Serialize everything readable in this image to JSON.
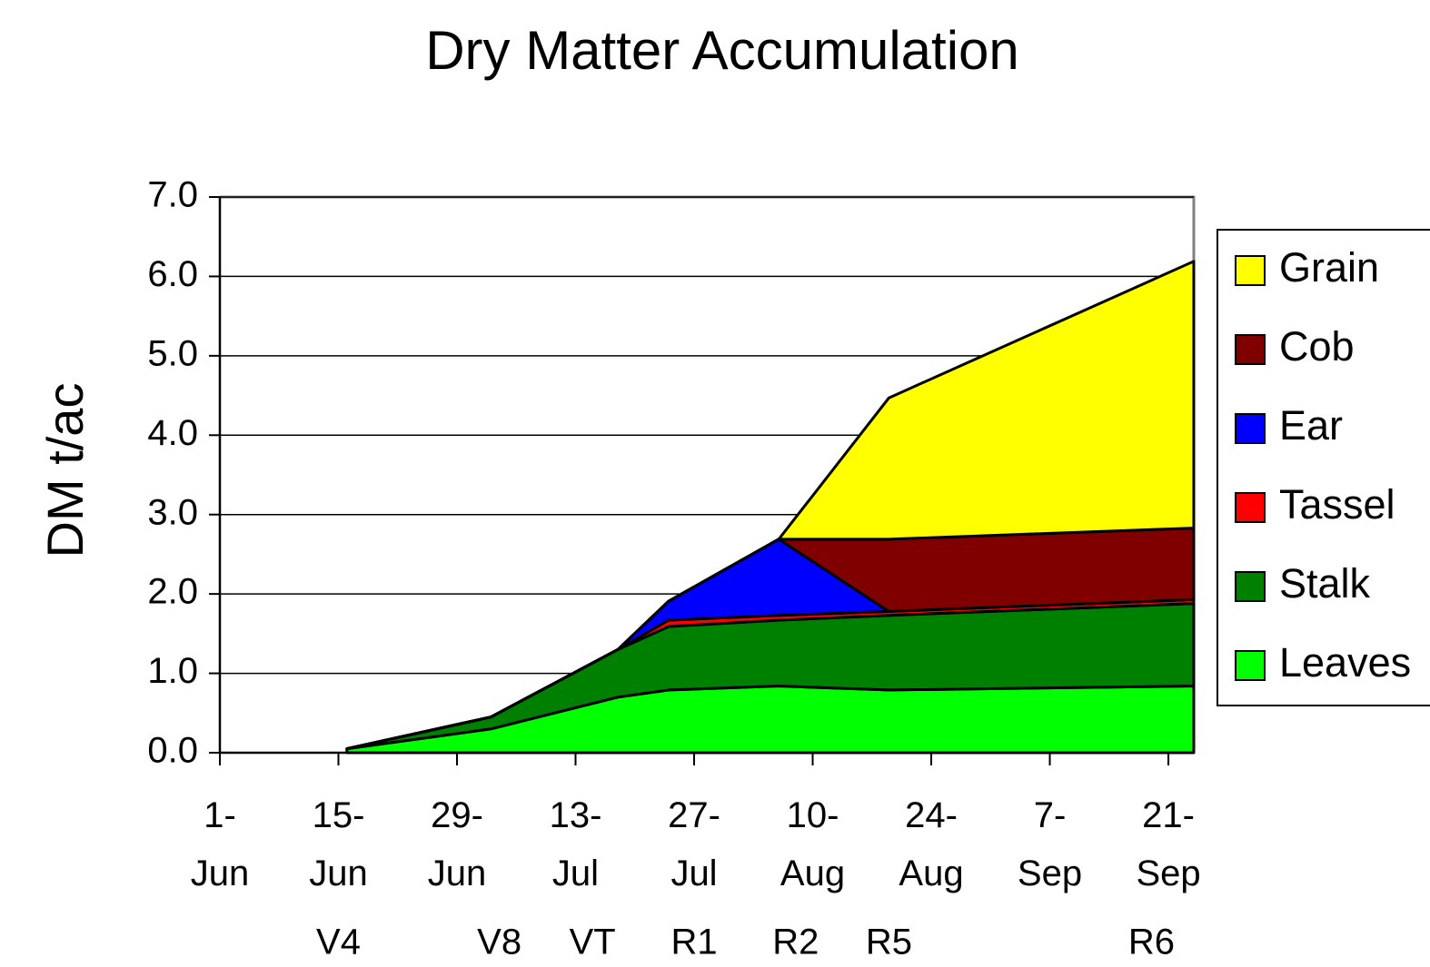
{
  "chart_data": {
    "type": "stacked_area",
    "title": "Dry Matter Accumulation",
    "y_label": "DM t/ac",
    "x": [
      "06-16",
      "07-03",
      "07-18",
      "07-24",
      "08-06",
      "08-19",
      "09-24"
    ],
    "xlim": [
      "06-01",
      "09-24"
    ],
    "xticks": [
      {
        "value": "06-01",
        "label": "1-Jun"
      },
      {
        "value": "06-15",
        "label": "15-Jun"
      },
      {
        "value": "06-29",
        "label": "29-Jun"
      },
      {
        "value": "07-13",
        "label": "13-Jul"
      },
      {
        "value": "07-27",
        "label": "27-Jul"
      },
      {
        "value": "08-10",
        "label": "10-Aug"
      },
      {
        "value": "08-24",
        "label": "24-Aug"
      },
      {
        "value": "09-07",
        "label": "7-Sep"
      },
      {
        "value": "09-21",
        "label": "21-Sep"
      }
    ],
    "ylim": [
      0,
      7
    ],
    "yticks": [
      {
        "value": 0,
        "label": "0.0"
      },
      {
        "value": 1,
        "label": "1.0"
      },
      {
        "value": 2,
        "label": "2.0"
      },
      {
        "value": 3,
        "label": "3.0"
      },
      {
        "value": 4,
        "label": "4.0"
      },
      {
        "value": 5,
        "label": "5.0"
      },
      {
        "value": 6,
        "label": "6.0"
      },
      {
        "value": 7,
        "label": "7.0"
      }
    ],
    "grid": true,
    "legend": "right",
    "series": [
      {
        "name": "Leaves",
        "color": "#00ff00",
        "values": [
          0.05,
          0.3,
          0.7,
          0.79,
          0.84,
          0.79,
          0.84
        ]
      },
      {
        "name": "Stalk",
        "color": "#008000",
        "values": [
          0,
          0.15,
          0.6,
          0.8,
          0.83,
          0.94,
          1.04
        ]
      },
      {
        "name": "Tassel",
        "color": "#ff0000",
        "values": [
          0,
          0,
          0,
          0.08,
          0.06,
          0.05,
          0.05
        ]
      },
      {
        "name": "Ear",
        "color": "#0000ff",
        "values": [
          0,
          0,
          0,
          0.24,
          0.96,
          0,
          0
        ]
      },
      {
        "name": "Cob",
        "color": "#800000",
        "values": [
          0,
          0,
          0,
          0,
          0,
          0.91,
          0.9
        ]
      },
      {
        "name": "Grain",
        "color": "#ffff00",
        "values": [
          0,
          0,
          0,
          0,
          0,
          1.78,
          3.36
        ]
      }
    ],
    "annotations": [
      {
        "text": "V4",
        "x": "06-15"
      },
      {
        "text": "V8",
        "x": "07-04"
      },
      {
        "text": "VT",
        "x": "07-15"
      },
      {
        "text": "R1",
        "x": "07-27"
      },
      {
        "text": "R2",
        "x": "08-08"
      },
      {
        "text": "R5",
        "x": "08-19"
      },
      {
        "text": "R6",
        "x": "09-19"
      }
    ]
  }
}
